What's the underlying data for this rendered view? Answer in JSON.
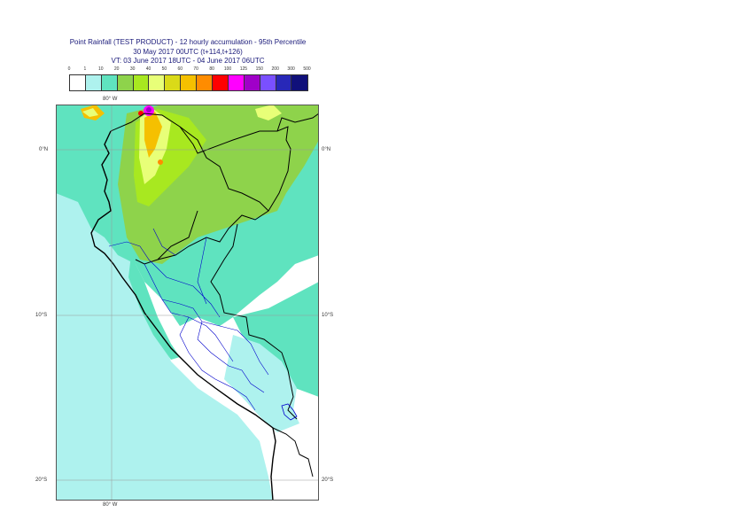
{
  "title": {
    "line1": "Point Rainfall (TEST PRODUCT) - 12 hourly accumulation - 95th Percentile",
    "line2": "30 May 2017 00UTC (t+114,t+126)",
    "line3": "VT: 03 June 2017 18UTC - 04 June 2017 06UTC"
  },
  "legend": {
    "thresholds": [
      "0",
      "1",
      "10",
      "20",
      "30",
      "40",
      "50",
      "60",
      "70",
      "80",
      "100",
      "125",
      "150",
      "200",
      "300",
      "500"
    ],
    "colors": [
      "#ffffff",
      "#aef2ee",
      "#5fe3bf",
      "#8ed34b",
      "#a8e820",
      "#e8ff78",
      "#dada18",
      "#f5c000",
      "#ff8c00",
      "#ff0000",
      "#ff00ff",
      "#a000c8",
      "#7a50ff",
      "#2828b8",
      "#10107a"
    ]
  },
  "axes": {
    "lon_top": "80° W",
    "lon_bottom": "80° W",
    "lat_left": [
      "0°N",
      "10°S",
      "20°S"
    ],
    "lat_right": [
      "0°N",
      "10°S",
      "20°S"
    ]
  },
  "map": {
    "sea_color": "#aef2ee",
    "land_dry_color": "#ffffff",
    "coast_color": "#000000",
    "border_color": "#0000cc"
  }
}
